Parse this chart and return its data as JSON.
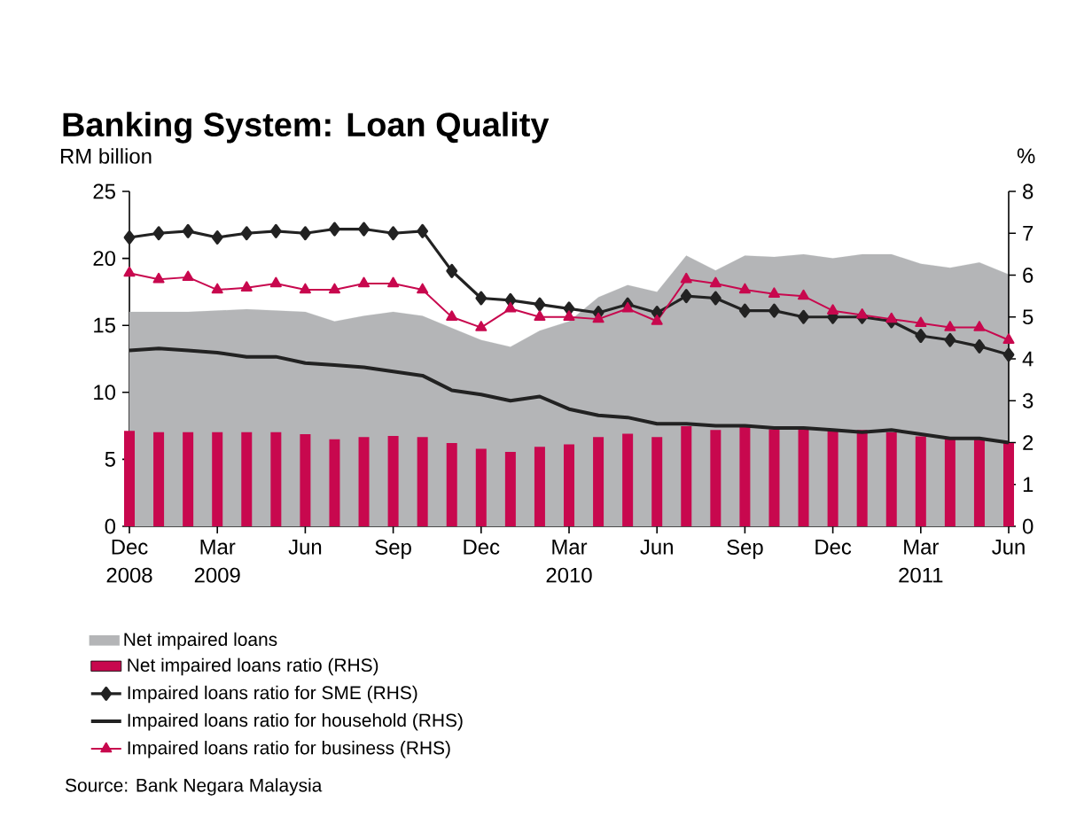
{
  "chart_data": {
    "type": "bar",
    "title": "Banking System: Loan Quality",
    "ylabel": "RM billion",
    "y2label": "%",
    "x": [
      "2008-12",
      "2009-01",
      "2009-02",
      "2009-03",
      "2009-04",
      "2009-05",
      "2009-06",
      "2009-07",
      "2009-08",
      "2009-09",
      "2009-10",
      "2009-11",
      "2009-12",
      "2010-01",
      "2010-02",
      "2010-03",
      "2010-04",
      "2010-05",
      "2010-06",
      "2010-07",
      "2010-08",
      "2010-09",
      "2010-10",
      "2010-11",
      "2010-12",
      "2011-01",
      "2011-02",
      "2011-03",
      "2011-04",
      "2011-05",
      "2011-06"
    ],
    "xlim": [
      "2008-12",
      "2011-06"
    ],
    "xticks": [
      {
        "value": "2008-12",
        "label": "Dec 2008"
      },
      {
        "value": "2009-03",
        "label": "Mar 2009"
      },
      {
        "value": "2009-06",
        "label": "Jun"
      },
      {
        "value": "2009-09",
        "label": "Sep"
      },
      {
        "value": "2009-12",
        "label": "Dec"
      },
      {
        "value": "2010-03",
        "label": "Mar 2010"
      },
      {
        "value": "2010-06",
        "label": "Jun"
      },
      {
        "value": "2010-09",
        "label": "Sep"
      },
      {
        "value": "2010-12",
        "label": "Dec"
      },
      {
        "value": "2011-03",
        "label": "Mar 2011"
      },
      {
        "value": "2011-06",
        "label": "Jun"
      }
    ],
    "ylim": [
      0,
      25
    ],
    "yticks": [
      0,
      5,
      10,
      15,
      20,
      25
    ],
    "y2lim": [
      0,
      8
    ],
    "y2ticks": [
      0,
      1,
      2,
      3,
      4,
      5,
      6,
      7,
      8
    ],
    "legend": "bottom",
    "series": [
      {
        "name": "Net impaired loans",
        "type": "area",
        "color": "#b4b5b7",
        "values": [
          16.0,
          16.0,
          16.0,
          16.1,
          16.2,
          16.1,
          16.0,
          15.3,
          15.7,
          16.0,
          15.7,
          14.8,
          13.9,
          13.4,
          14.6,
          15.3,
          17.1,
          18.0,
          17.5,
          20.2,
          19.1,
          20.2,
          20.1,
          20.3,
          20.0,
          20.3,
          20.3,
          19.6,
          19.3,
          19.7,
          18.8
        ]
      },
      {
        "name": "Net impaired loans ratio (RHS)",
        "axis": "y2",
        "color": "#c8084e",
        "values": [
          2.28,
          2.25,
          2.25,
          2.25,
          2.25,
          2.25,
          2.2,
          2.08,
          2.13,
          2.16,
          2.13,
          1.99,
          1.85,
          1.78,
          1.9,
          1.96,
          2.13,
          2.21,
          2.13,
          2.39,
          2.3,
          2.37,
          2.32,
          2.32,
          2.3,
          2.3,
          2.25,
          2.15,
          2.08,
          2.07,
          1.99
        ]
      },
      {
        "name": "Impaired loans ratio for SME (RHS)",
        "type": "line",
        "axis": "y2",
        "color": "#222222",
        "marker": "diamond",
        "values": [
          6.9,
          7.0,
          7.05,
          6.9,
          7.0,
          7.05,
          7.0,
          7.1,
          7.1,
          7.0,
          7.05,
          6.1,
          5.45,
          5.4,
          5.3,
          5.2,
          5.1,
          5.3,
          5.1,
          5.5,
          5.45,
          5.15,
          5.15,
          5.0,
          5.0,
          5.0,
          4.9,
          4.55,
          4.45,
          4.3,
          4.1
        ]
      },
      {
        "name": "Impaired loans ratio for household (RHS)",
        "type": "line",
        "axis": "y2",
        "color": "#222222",
        "marker": "none",
        "values": [
          4.2,
          4.25,
          4.2,
          4.15,
          4.05,
          4.05,
          3.9,
          3.85,
          3.8,
          3.7,
          3.6,
          3.25,
          3.15,
          3.0,
          3.1,
          2.8,
          2.65,
          2.6,
          2.45,
          2.45,
          2.4,
          2.4,
          2.35,
          2.35,
          2.3,
          2.25,
          2.3,
          2.2,
          2.1,
          2.1,
          2.0
        ]
      },
      {
        "name": "Impaired loans ratio for business (RHS)",
        "type": "line",
        "axis": "y2",
        "color": "#c8084e",
        "marker": "triangle",
        "values": [
          6.05,
          5.9,
          5.95,
          5.65,
          5.7,
          5.8,
          5.65,
          5.65,
          5.8,
          5.8,
          5.65,
          5.0,
          4.75,
          5.2,
          5.0,
          5.0,
          4.95,
          5.2,
          4.9,
          5.9,
          5.8,
          5.65,
          5.55,
          5.5,
          5.15,
          5.05,
          4.95,
          4.85,
          4.75,
          4.75,
          4.45
        ]
      }
    ],
    "annotations": [
      "Source: Bank Negara Malaysia"
    ]
  }
}
